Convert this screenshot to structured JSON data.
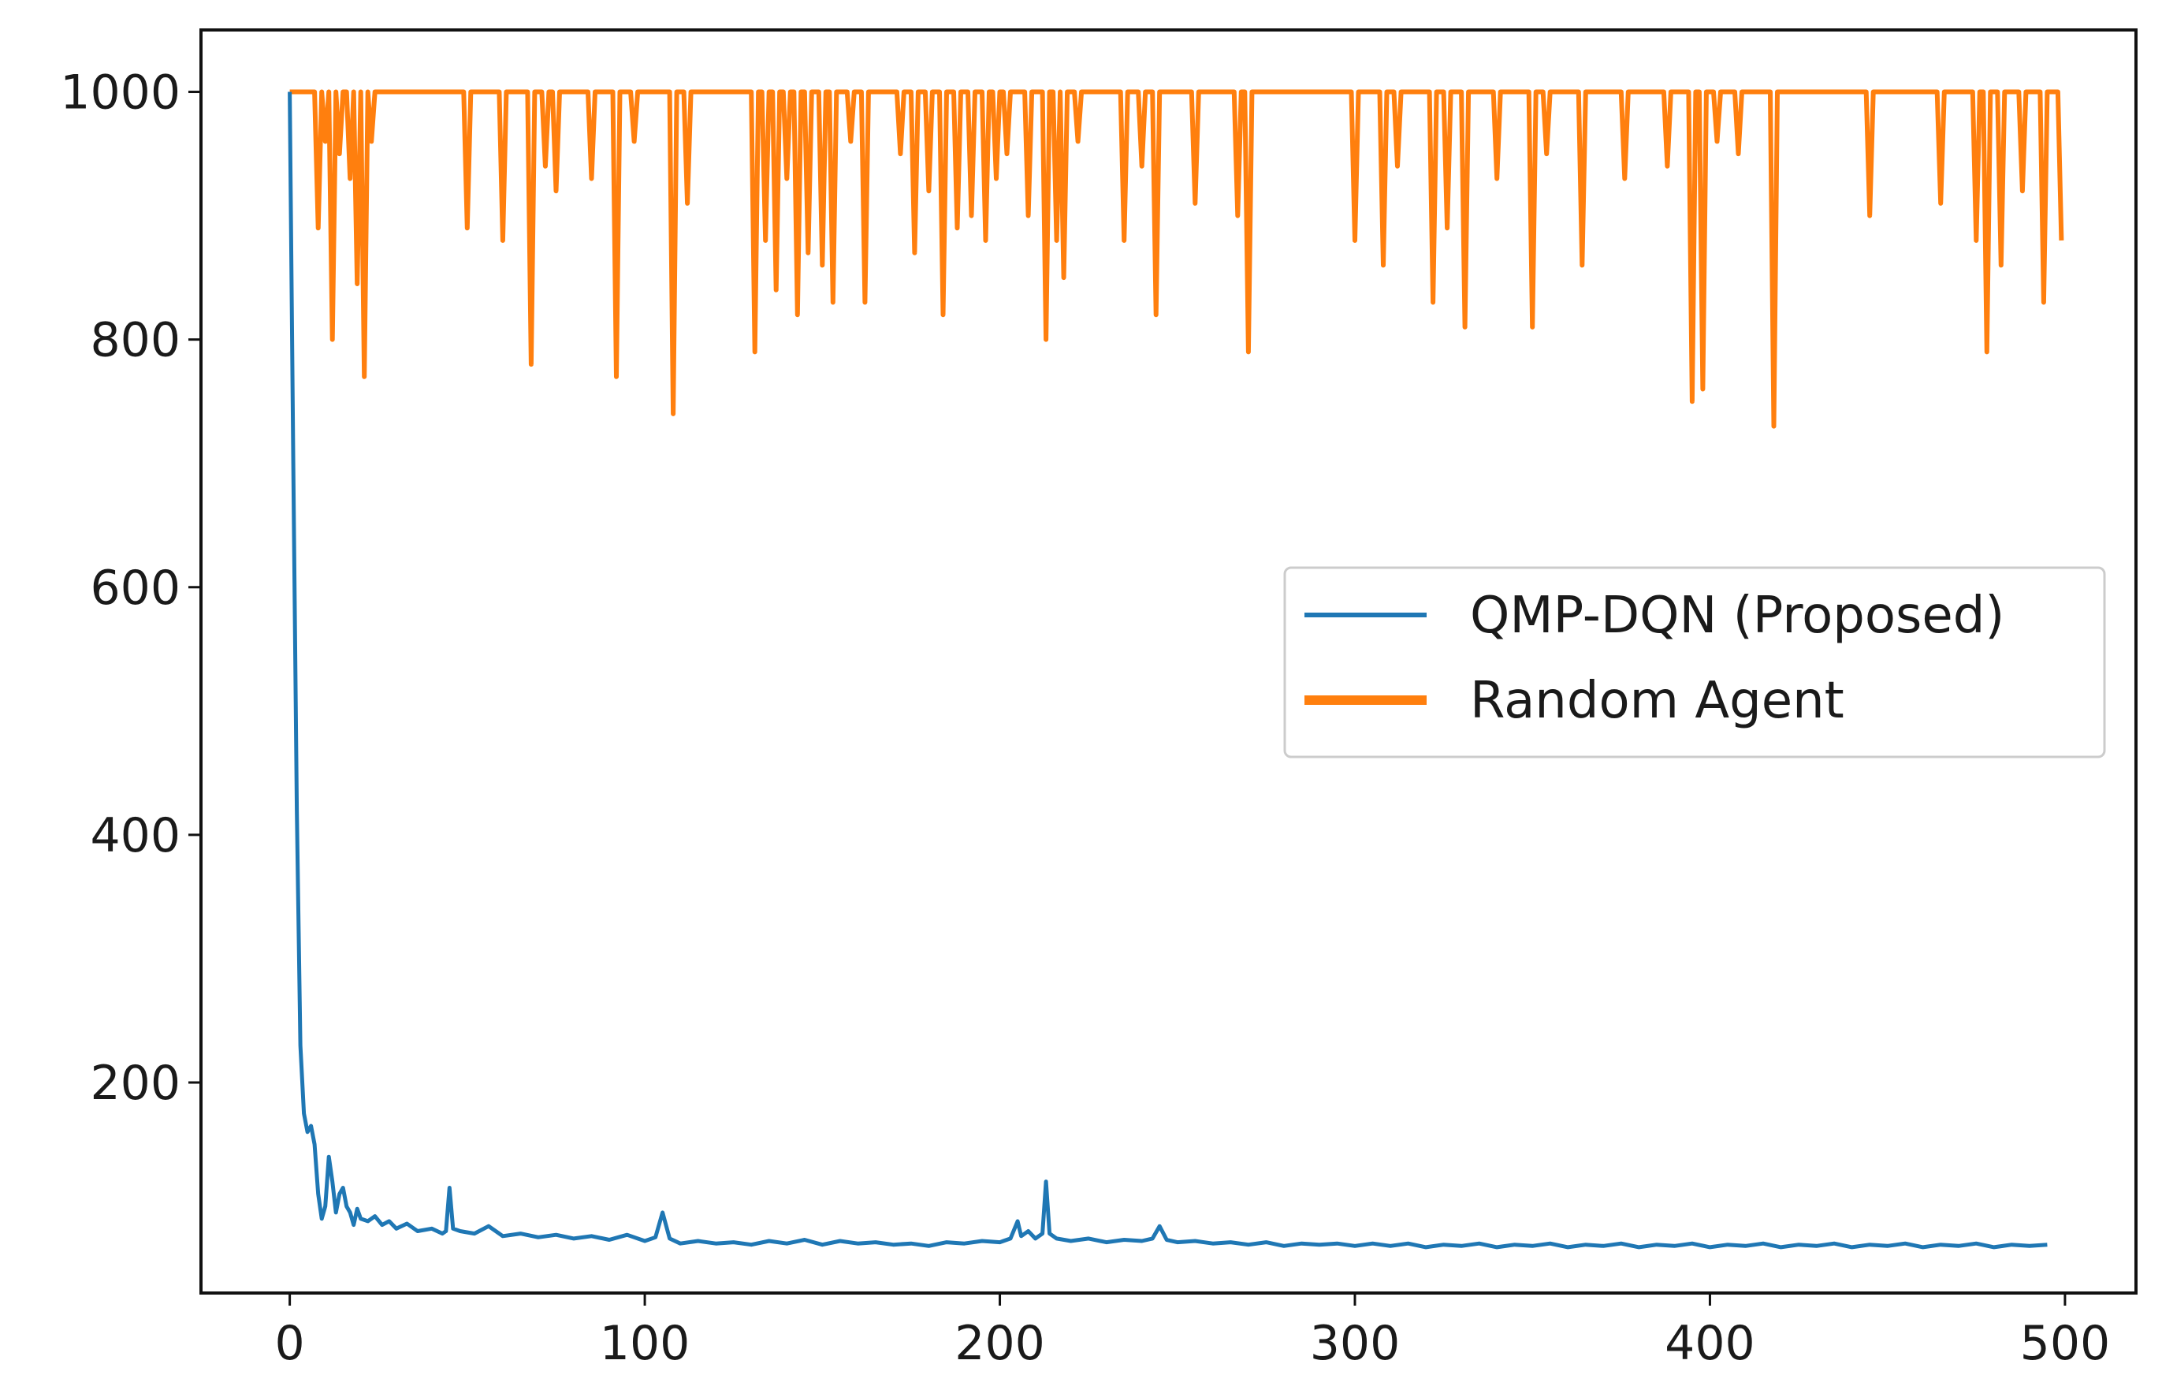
{
  "chart_data": {
    "type": "line",
    "title": "",
    "xlabel": "",
    "ylabel": "",
    "xlim": [
      -25,
      520
    ],
    "ylim": [
      30,
      1050
    ],
    "x_ticks": [
      0,
      100,
      200,
      300,
      400,
      500
    ],
    "y_ticks": [
      200,
      400,
      600,
      800,
      1000
    ],
    "grid": false,
    "legend_position": "center-right",
    "series": [
      {
        "name": "QMP-DQN (Proposed)",
        "color": "#1f77b4",
        "points": [
          [
            0,
            1000
          ],
          [
            1,
            700
          ],
          [
            2,
            420
          ],
          [
            3,
            230
          ],
          [
            4,
            175
          ],
          [
            5,
            160
          ],
          [
            6,
            165
          ],
          [
            7,
            150
          ],
          [
            8,
            110
          ],
          [
            9,
            90
          ],
          [
            10,
            100
          ],
          [
            11,
            140
          ],
          [
            12,
            120
          ],
          [
            13,
            95
          ],
          [
            14,
            110
          ],
          [
            15,
            115
          ],
          [
            16,
            100
          ],
          [
            17,
            95
          ],
          [
            18,
            85
          ],
          [
            19,
            98
          ],
          [
            20,
            90
          ],
          [
            22,
            88
          ],
          [
            24,
            92
          ],
          [
            26,
            85
          ],
          [
            28,
            88
          ],
          [
            30,
            82
          ],
          [
            33,
            86
          ],
          [
            36,
            80
          ],
          [
            40,
            82
          ],
          [
            43,
            78
          ],
          [
            44,
            80
          ],
          [
            45,
            115
          ],
          [
            46,
            82
          ],
          [
            48,
            80
          ],
          [
            52,
            78
          ],
          [
            56,
            84
          ],
          [
            60,
            76
          ],
          [
            65,
            78
          ],
          [
            70,
            75
          ],
          [
            75,
            77
          ],
          [
            80,
            74
          ],
          [
            85,
            76
          ],
          [
            90,
            73
          ],
          [
            95,
            77
          ],
          [
            100,
            72
          ],
          [
            103,
            75
          ],
          [
            105,
            95
          ],
          [
            107,
            74
          ],
          [
            110,
            70
          ],
          [
            115,
            72
          ],
          [
            120,
            70
          ],
          [
            125,
            71
          ],
          [
            130,
            69
          ],
          [
            135,
            72
          ],
          [
            140,
            70
          ],
          [
            145,
            73
          ],
          [
            150,
            69
          ],
          [
            155,
            72
          ],
          [
            160,
            70
          ],
          [
            165,
            71
          ],
          [
            170,
            69
          ],
          [
            175,
            70
          ],
          [
            180,
            68
          ],
          [
            185,
            71
          ],
          [
            190,
            70
          ],
          [
            195,
            72
          ],
          [
            200,
            71
          ],
          [
            203,
            74
          ],
          [
            205,
            88
          ],
          [
            206,
            76
          ],
          [
            208,
            80
          ],
          [
            210,
            74
          ],
          [
            212,
            78
          ],
          [
            213,
            120
          ],
          [
            214,
            78
          ],
          [
            216,
            74
          ],
          [
            220,
            72
          ],
          [
            225,
            74
          ],
          [
            230,
            71
          ],
          [
            235,
            73
          ],
          [
            240,
            72
          ],
          [
            243,
            74
          ],
          [
            245,
            84
          ],
          [
            247,
            73
          ],
          [
            250,
            71
          ],
          [
            255,
            72
          ],
          [
            260,
            70
          ],
          [
            265,
            71
          ],
          [
            270,
            69
          ],
          [
            275,
            71
          ],
          [
            280,
            68
          ],
          [
            285,
            70
          ],
          [
            290,
            69
          ],
          [
            295,
            70
          ],
          [
            300,
            68
          ],
          [
            305,
            70
          ],
          [
            310,
            68
          ],
          [
            315,
            70
          ],
          [
            320,
            67
          ],
          [
            325,
            69
          ],
          [
            330,
            68
          ],
          [
            335,
            70
          ],
          [
            340,
            67
          ],
          [
            345,
            69
          ],
          [
            350,
            68
          ],
          [
            355,
            70
          ],
          [
            360,
            67
          ],
          [
            365,
            69
          ],
          [
            370,
            68
          ],
          [
            375,
            70
          ],
          [
            380,
            67
          ],
          [
            385,
            69
          ],
          [
            390,
            68
          ],
          [
            395,
            70
          ],
          [
            400,
            67
          ],
          [
            405,
            69
          ],
          [
            410,
            68
          ],
          [
            415,
            70
          ],
          [
            420,
            67
          ],
          [
            425,
            69
          ],
          [
            430,
            68
          ],
          [
            435,
            70
          ],
          [
            440,
            67
          ],
          [
            445,
            69
          ],
          [
            450,
            68
          ],
          [
            455,
            70
          ],
          [
            460,
            67
          ],
          [
            465,
            69
          ],
          [
            470,
            68
          ],
          [
            475,
            70
          ],
          [
            480,
            67
          ],
          [
            485,
            69
          ],
          [
            490,
            68
          ],
          [
            495,
            69
          ]
        ]
      },
      {
        "name": "Random Agent",
        "color": "#ff7f0e",
        "baseline": 1000,
        "x_range": [
          0,
          499
        ],
        "dips": [
          [
            8,
            890
          ],
          [
            10,
            960
          ],
          [
            12,
            800
          ],
          [
            14,
            950
          ],
          [
            17,
            930
          ],
          [
            19,
            845
          ],
          [
            21,
            770
          ],
          [
            23,
            960
          ],
          [
            50,
            890
          ],
          [
            60,
            880
          ],
          [
            68,
            780
          ],
          [
            72,
            940
          ],
          [
            75,
            920
          ],
          [
            85,
            930
          ],
          [
            92,
            770
          ],
          [
            97,
            960
          ],
          [
            108,
            740
          ],
          [
            112,
            910
          ],
          [
            131,
            790
          ],
          [
            134,
            880
          ],
          [
            137,
            840
          ],
          [
            140,
            930
          ],
          [
            143,
            820
          ],
          [
            146,
            870
          ],
          [
            150,
            860
          ],
          [
            153,
            830
          ],
          [
            158,
            960
          ],
          [
            162,
            830
          ],
          [
            172,
            950
          ],
          [
            176,
            870
          ],
          [
            180,
            920
          ],
          [
            184,
            820
          ],
          [
            188,
            890
          ],
          [
            192,
            900
          ],
          [
            196,
            880
          ],
          [
            199,
            930
          ],
          [
            202,
            950
          ],
          [
            208,
            900
          ],
          [
            213,
            800
          ],
          [
            216,
            880
          ],
          [
            218,
            850
          ],
          [
            222,
            960
          ],
          [
            235,
            880
          ],
          [
            240,
            940
          ],
          [
            244,
            820
          ],
          [
            255,
            910
          ],
          [
            267,
            900
          ],
          [
            270,
            790
          ],
          [
            300,
            880
          ],
          [
            308,
            860
          ],
          [
            312,
            940
          ],
          [
            322,
            830
          ],
          [
            326,
            890
          ],
          [
            331,
            810
          ],
          [
            340,
            930
          ],
          [
            350,
            810
          ],
          [
            354,
            950
          ],
          [
            364,
            860
          ],
          [
            376,
            930
          ],
          [
            388,
            940
          ],
          [
            395,
            750
          ],
          [
            398,
            760
          ],
          [
            402,
            960
          ],
          [
            408,
            950
          ],
          [
            418,
            730
          ],
          [
            445,
            900
          ],
          [
            465,
            910
          ],
          [
            475,
            880
          ],
          [
            478,
            790
          ],
          [
            482,
            860
          ],
          [
            488,
            920
          ],
          [
            494,
            830
          ],
          [
            499,
            880
          ]
        ]
      }
    ]
  },
  "legend": {
    "items": [
      {
        "label": "QMP-DQN (Proposed)",
        "color": "#1f77b4"
      },
      {
        "label": "Random Agent",
        "color": "#ff7f0e"
      }
    ]
  }
}
